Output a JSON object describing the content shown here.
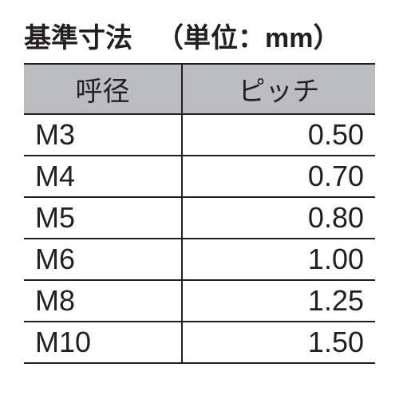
{
  "title": {
    "main": "基準寸法",
    "unit": "（単位：mm）"
  },
  "table": {
    "columns": [
      "呼径",
      "ピッチ"
    ],
    "rows": [
      [
        "M3",
        "0.50"
      ],
      [
        "M4",
        "0.70"
      ],
      [
        "M5",
        "0.80"
      ],
      [
        "M6",
        "1.00"
      ],
      [
        "M8",
        "1.25"
      ],
      [
        "M10",
        "1.50"
      ]
    ],
    "header_bg": "#bcbdc0",
    "border_color": "#231f20",
    "text_color": "#231f20",
    "title_fontsize": 34,
    "header_fontsize": 34,
    "cell_fontsize": 36,
    "col_widths": [
      "45%",
      "55%"
    ],
    "col_align": [
      "left",
      "right"
    ]
  }
}
